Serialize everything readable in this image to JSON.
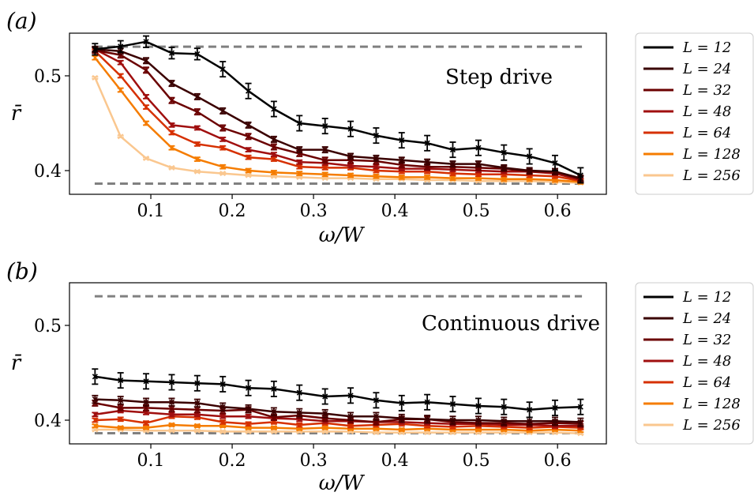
{
  "chart_data": [
    {
      "type": "line",
      "panel_label": "(a)",
      "annotation": "Step drive",
      "xlabel": "ω/W",
      "ylabel": "r̄",
      "xlim": [
        0.0,
        0.66
      ],
      "ylim": [
        0.375,
        0.545
      ],
      "xticks": [
        0.1,
        0.2,
        0.3,
        0.4,
        0.5,
        0.6
      ],
      "xtick_labels": [
        "0.1",
        "0.2",
        "0.3",
        "0.4",
        "0.5",
        "0.6"
      ],
      "yticks": [
        0.4,
        0.5
      ],
      "ytick_labels": [
        "0.4",
        "0.5"
      ],
      "reference_lines": [
        0.5307,
        0.3863
      ],
      "reference_color": "#808080",
      "x": [
        0.0314,
        0.0628,
        0.0942,
        0.1257,
        0.1571,
        0.1885,
        0.2199,
        0.2513,
        0.2827,
        0.3142,
        0.3456,
        0.377,
        0.4084,
        0.4398,
        0.4712,
        0.5027,
        0.5341,
        0.5655,
        0.5969,
        0.6283
      ],
      "legend_location": "outside-right",
      "series": [
        {
          "name": "L = 12",
          "color": "#000000",
          "values": [
            0.528,
            0.531,
            0.536,
            0.524,
            0.523,
            0.507,
            0.484,
            0.465,
            0.45,
            0.447,
            0.444,
            0.437,
            0.432,
            0.429,
            0.422,
            0.424,
            0.419,
            0.415,
            0.408,
            0.395
          ],
          "errors": [
            0.006,
            0.006,
            0.006,
            0.006,
            0.006,
            0.008,
            0.008,
            0.008,
            0.008,
            0.008,
            0.008,
            0.008,
            0.008,
            0.008,
            0.008,
            0.008,
            0.008,
            0.008,
            0.008,
            0.008
          ]
        },
        {
          "name": "L = 24",
          "color": "#3a0000",
          "values": [
            0.528,
            0.526,
            0.516,
            0.492,
            0.478,
            0.463,
            0.448,
            0.433,
            0.422,
            0.422,
            0.415,
            0.413,
            0.411,
            0.409,
            0.407,
            0.407,
            0.403,
            0.4,
            0.399,
            0.392
          ],
          "errors": [
            0.003,
            0.003,
            0.003,
            0.003,
            0.003,
            0.003,
            0.003,
            0.003,
            0.003,
            0.003,
            0.003,
            0.003,
            0.003,
            0.003,
            0.003,
            0.003,
            0.003,
            0.003,
            0.003,
            0.003
          ]
        },
        {
          "name": "L = 32",
          "color": "#6b0000",
          "values": [
            0.527,
            0.522,
            0.506,
            0.474,
            0.462,
            0.445,
            0.436,
            0.425,
            0.418,
            0.411,
            0.411,
            0.41,
            0.406,
            0.404,
            0.404,
            0.403,
            0.402,
            0.399,
            0.399,
            0.391
          ],
          "errors": [
            0.003,
            0.003,
            0.003,
            0.003,
            0.003,
            0.003,
            0.003,
            0.003,
            0.003,
            0.003,
            0.003,
            0.003,
            0.003,
            0.003,
            0.003,
            0.003,
            0.003,
            0.003,
            0.003,
            0.003
          ]
        },
        {
          "name": "L = 48",
          "color": "#a00f0f",
          "values": [
            0.528,
            0.514,
            0.478,
            0.448,
            0.445,
            0.433,
            0.422,
            0.417,
            0.409,
            0.408,
            0.405,
            0.404,
            0.402,
            0.402,
            0.401,
            0.4,
            0.399,
            0.399,
            0.397,
            0.39
          ],
          "errors": [
            0.002,
            0.002,
            0.002,
            0.002,
            0.002,
            0.002,
            0.002,
            0.002,
            0.002,
            0.002,
            0.002,
            0.002,
            0.002,
            0.002,
            0.002,
            0.002,
            0.002,
            0.002,
            0.002,
            0.002
          ]
        },
        {
          "name": "L = 64",
          "color": "#d63000",
          "values": [
            0.526,
            0.5,
            0.467,
            0.44,
            0.428,
            0.424,
            0.414,
            0.412,
            0.404,
            0.403,
            0.403,
            0.4,
            0.399,
            0.399,
            0.397,
            0.396,
            0.396,
            0.395,
            0.394,
            0.389
          ],
          "errors": [
            0.002,
            0.002,
            0.002,
            0.002,
            0.002,
            0.002,
            0.002,
            0.002,
            0.002,
            0.002,
            0.002,
            0.002,
            0.002,
            0.002,
            0.002,
            0.002,
            0.002,
            0.002,
            0.002,
            0.002
          ]
        },
        {
          "name": "L = 128",
          "color": "#f57c00",
          "values": [
            0.519,
            0.485,
            0.45,
            0.424,
            0.412,
            0.404,
            0.4,
            0.398,
            0.397,
            0.396,
            0.395,
            0.394,
            0.393,
            0.393,
            0.392,
            0.392,
            0.391,
            0.391,
            0.39,
            0.388
          ],
          "errors": [
            0.002,
            0.002,
            0.002,
            0.002,
            0.002,
            0.002,
            0.002,
            0.002,
            0.002,
            0.002,
            0.002,
            0.002,
            0.002,
            0.002,
            0.002,
            0.002,
            0.002,
            0.002,
            0.002,
            0.002
          ]
        },
        {
          "name": "L = 256",
          "color": "#fac78f",
          "values": [
            0.498,
            0.436,
            0.413,
            0.403,
            0.399,
            0.397,
            0.395,
            0.394,
            0.393,
            0.392,
            0.392,
            0.391,
            0.391,
            0.39,
            0.39,
            0.389,
            0.389,
            0.389,
            0.388,
            0.387
          ],
          "errors": [
            0.001,
            0.001,
            0.001,
            0.001,
            0.001,
            0.001,
            0.001,
            0.001,
            0.001,
            0.001,
            0.001,
            0.001,
            0.001,
            0.001,
            0.001,
            0.001,
            0.001,
            0.001,
            0.001,
            0.001
          ]
        }
      ]
    },
    {
      "type": "line",
      "panel_label": "(b)",
      "annotation": "Continuous drive",
      "xlabel": "ω/W",
      "ylabel": "r̄",
      "xlim": [
        0.0,
        0.66
      ],
      "ylim": [
        0.375,
        0.545
      ],
      "xticks": [
        0.1,
        0.2,
        0.3,
        0.4,
        0.5,
        0.6
      ],
      "xtick_labels": [
        "0.1",
        "0.2",
        "0.3",
        "0.4",
        "0.5",
        "0.6"
      ],
      "yticks": [
        0.4,
        0.5
      ],
      "ytick_labels": [
        "0.4",
        "0.5"
      ],
      "reference_lines": [
        0.5307,
        0.3863
      ],
      "reference_color": "#808080",
      "x": [
        0.0314,
        0.0628,
        0.0942,
        0.1257,
        0.1571,
        0.1885,
        0.2199,
        0.2513,
        0.2827,
        0.3142,
        0.3456,
        0.377,
        0.4084,
        0.4398,
        0.4712,
        0.5027,
        0.5341,
        0.5655,
        0.5969,
        0.6283
      ],
      "legend_location": "outside-right",
      "series": [
        {
          "name": "L = 12",
          "color": "#000000",
          "values": [
            0.446,
            0.442,
            0.441,
            0.44,
            0.439,
            0.438,
            0.434,
            0.433,
            0.429,
            0.425,
            0.426,
            0.421,
            0.418,
            0.419,
            0.417,
            0.415,
            0.414,
            0.411,
            0.413,
            0.414
          ],
          "errors": [
            0.008,
            0.008,
            0.008,
            0.008,
            0.008,
            0.008,
            0.008,
            0.008,
            0.008,
            0.008,
            0.008,
            0.008,
            0.008,
            0.008,
            0.008,
            0.008,
            0.008,
            0.008,
            0.008,
            0.008
          ]
        },
        {
          "name": "L = 24",
          "color": "#3a0000",
          "values": [
            0.422,
            0.421,
            0.419,
            0.419,
            0.418,
            0.414,
            0.412,
            0.409,
            0.408,
            0.407,
            0.404,
            0.404,
            0.402,
            0.401,
            0.4,
            0.4,
            0.399,
            0.399,
            0.399,
            0.398
          ],
          "errors": [
            0.004,
            0.004,
            0.004,
            0.004,
            0.004,
            0.004,
            0.004,
            0.004,
            0.004,
            0.004,
            0.004,
            0.004,
            0.004,
            0.004,
            0.004,
            0.004,
            0.004,
            0.004,
            0.004,
            0.004
          ]
        },
        {
          "name": "L = 32",
          "color": "#6b0000",
          "values": [
            0.418,
            0.413,
            0.413,
            0.412,
            0.411,
            0.41,
            0.411,
            0.403,
            0.405,
            0.402,
            0.4,
            0.398,
            0.401,
            0.401,
            0.398,
            0.397,
            0.397,
            0.396,
            0.397,
            0.396
          ],
          "errors": [
            0.003,
            0.003,
            0.003,
            0.003,
            0.003,
            0.003,
            0.003,
            0.003,
            0.003,
            0.003,
            0.003,
            0.003,
            0.003,
            0.003,
            0.003,
            0.003,
            0.003,
            0.003,
            0.003,
            0.003
          ]
        },
        {
          "name": "L = 48",
          "color": "#a00f0f",
          "values": [
            0.406,
            0.41,
            0.408,
            0.406,
            0.406,
            0.404,
            0.404,
            0.402,
            0.401,
            0.399,
            0.399,
            0.398,
            0.398,
            0.397,
            0.396,
            0.396,
            0.395,
            0.395,
            0.394,
            0.394
          ],
          "errors": [
            0.002,
            0.002,
            0.002,
            0.002,
            0.002,
            0.002,
            0.002,
            0.002,
            0.002,
            0.002,
            0.002,
            0.002,
            0.002,
            0.002,
            0.002,
            0.002,
            0.002,
            0.002,
            0.002,
            0.002
          ]
        },
        {
          "name": "L = 64",
          "color": "#d63000",
          "values": [
            0.4,
            0.401,
            0.397,
            0.404,
            0.403,
            0.398,
            0.396,
            0.398,
            0.395,
            0.397,
            0.394,
            0.395,
            0.396,
            0.394,
            0.393,
            0.394,
            0.393,
            0.392,
            0.393,
            0.392
          ],
          "errors": [
            0.002,
            0.002,
            0.002,
            0.002,
            0.002,
            0.002,
            0.002,
            0.002,
            0.002,
            0.002,
            0.002,
            0.002,
            0.002,
            0.002,
            0.002,
            0.002,
            0.002,
            0.002,
            0.002,
            0.002
          ]
        },
        {
          "name": "L = 128",
          "color": "#f57c00",
          "values": [
            0.394,
            0.392,
            0.392,
            0.395,
            0.394,
            0.394,
            0.392,
            0.392,
            0.391,
            0.392,
            0.391,
            0.391,
            0.39,
            0.391,
            0.39,
            0.39,
            0.39,
            0.389,
            0.39,
            0.389
          ],
          "errors": [
            0.0015,
            0.0015,
            0.0015,
            0.0015,
            0.0015,
            0.0015,
            0.0015,
            0.0015,
            0.0015,
            0.0015,
            0.0015,
            0.0015,
            0.0015,
            0.0015,
            0.0015,
            0.0015,
            0.0015,
            0.0015,
            0.0015,
            0.0015
          ]
        },
        {
          "name": "L = 256",
          "color": "#fac78f",
          "values": [
            0.39,
            0.39,
            0.389,
            0.389,
            0.389,
            0.388,
            0.388,
            0.388,
            0.388,
            0.388,
            0.388,
            0.387,
            0.387,
            0.387,
            0.387,
            0.387,
            0.387,
            0.387,
            0.387,
            0.386
          ],
          "errors": [
            0.001,
            0.001,
            0.001,
            0.001,
            0.001,
            0.001,
            0.001,
            0.001,
            0.001,
            0.001,
            0.001,
            0.001,
            0.001,
            0.001,
            0.001,
            0.001,
            0.001,
            0.001,
            0.001,
            0.001
          ]
        }
      ]
    }
  ]
}
